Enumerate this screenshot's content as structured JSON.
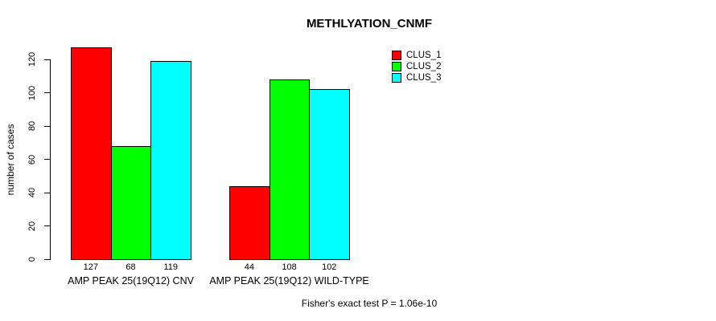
{
  "chart_data": {
    "type": "bar",
    "title": "METHLYATION_CNMF",
    "xlabel": "",
    "ylabel": "number of cases",
    "groups": [
      "AMP PEAK 25(19Q12) CNV",
      "AMP PEAK 25(19Q12) WILD-TYPE"
    ],
    "series": [
      {
        "name": "CLUS_1",
        "color": "#ff0000",
        "values": [
          127,
          44
        ]
      },
      {
        "name": "CLUS_2",
        "color": "#00ff00",
        "values": [
          68,
          108
        ]
      },
      {
        "name": "CLUS_3",
        "color": "#00ffff",
        "values": [
          119,
          102
        ]
      }
    ],
    "bar_value_labels": [
      [
        127,
        68,
        119
      ],
      [
        44,
        108,
        102
      ]
    ],
    "yticks": [
      0,
      20,
      40,
      60,
      80,
      100,
      120
    ],
    "ylim": [
      0,
      130
    ],
    "grid": false,
    "legend_position": "top-right",
    "annotation": "Fisher's exact test P = 1.06e-10"
  },
  "colors": {
    "background": "#ffffff",
    "axis": "#000000",
    "text": "#000000"
  }
}
